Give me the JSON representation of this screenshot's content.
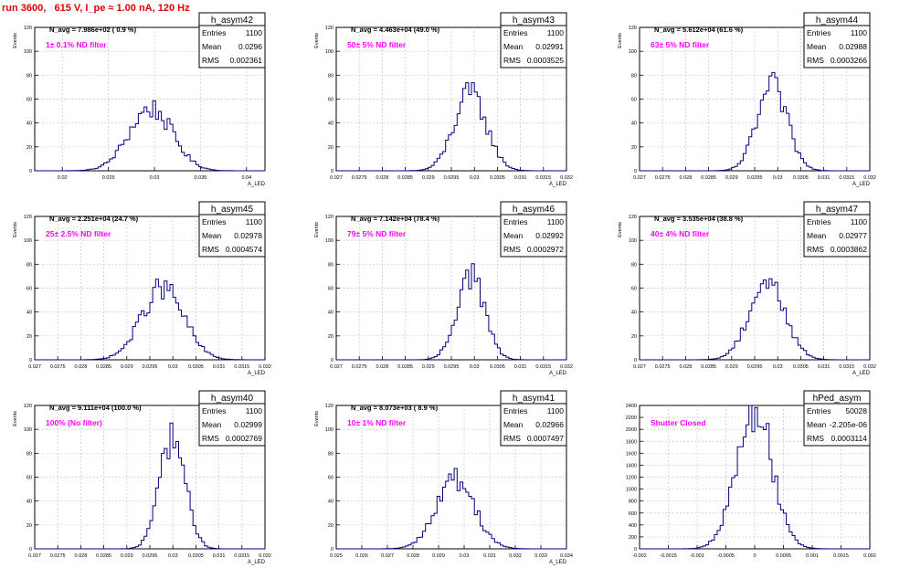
{
  "page_title": "run 3600,   615 V, I_pe ≈ 1.00 nA, 120 Hz",
  "colors": {
    "hist_line": "#000080",
    "annotation": "#ff00ff",
    "title": "#e00000",
    "grid": "#c8c8c8"
  },
  "chart_data": [
    {
      "type": "histogram",
      "name": "h_asym42",
      "stats": {
        "entries_label": "Entries",
        "entries": "1100",
        "mean_label": "Mean",
        "mean": "0.0296",
        "rms_label": "RMS",
        "rms": "0.002361"
      },
      "n_avg_text": "N_avg = 7.986e+02 ( 0.9 %)",
      "annotation": "1± 0.1% ND filter",
      "ylabel": "Events",
      "xlabel": "A_LED",
      "xlim": [
        0.017,
        0.042
      ],
      "ylim": [
        0,
        120
      ],
      "xticks": [
        0.02,
        0.025,
        0.03,
        0.035,
        0.04
      ],
      "xtick_labels": [
        "0.02",
        "0.025",
        "0.03",
        "0.035",
        "0.04"
      ],
      "yticks": [
        0,
        20,
        40,
        60,
        80,
        100,
        120
      ],
      "ytick_labels": [
        "0",
        "20",
        "40",
        "60",
        "80",
        "100",
        "120"
      ],
      "mean_value": 0.0296,
      "rms_value": 0.002361,
      "peak_counts": 52
    },
    {
      "type": "histogram",
      "name": "h_asym43",
      "stats": {
        "entries_label": "Entries",
        "entries": "1100",
        "mean_label": "Mean",
        "mean": "0.02991",
        "rms_label": "RMS",
        "rms": "0.0003525"
      },
      "n_avg_text": "N_avg = 4.463e+04 (49.0 %)",
      "annotation": "50± 5% ND filter",
      "ylabel": "Events",
      "xlabel": "A_LED",
      "xlim": [
        0.027,
        0.032
      ],
      "ylim": [
        0,
        120
      ],
      "xticks": [
        0.027,
        0.0275,
        0.028,
        0.0285,
        0.029,
        0.0295,
        0.03,
        0.0305,
        0.031,
        0.0315,
        0.032
      ],
      "xtick_labels": [
        "0.027",
        "0.0275",
        "0.028",
        "0.0285",
        "0.029",
        "0.0295",
        "0.03",
        "0.0305",
        "0.031",
        "0.0315",
        "0.032"
      ],
      "yticks": [
        0,
        20,
        40,
        60,
        80,
        100,
        120
      ],
      "ytick_labels": [
        "0",
        "20",
        "40",
        "60",
        "80",
        "100",
        "120"
      ],
      "mean_value": 0.02991,
      "rms_value": 0.0003525,
      "peak_counts": 64
    },
    {
      "type": "histogram",
      "name": "h_asym44",
      "stats": {
        "entries_label": "Entries",
        "entries": "1100",
        "mean_label": "Mean",
        "mean": "0.02988",
        "rms_label": "RMS",
        "rms": "0.0003266"
      },
      "n_avg_text": "N_avg = 5.612e+04 (61.6 %)",
      "annotation": "63± 5% ND filter",
      "ylabel": "Events",
      "xlabel": "A_LED",
      "xlim": [
        0.027,
        0.032
      ],
      "ylim": [
        0,
        120
      ],
      "xticks": [
        0.027,
        0.0275,
        0.028,
        0.0285,
        0.029,
        0.0295,
        0.03,
        0.0305,
        0.031,
        0.0315,
        0.032
      ],
      "xtick_labels": [
        "0.027",
        "0.0275",
        "0.028",
        "0.0285",
        "0.029",
        "0.0295",
        "0.03",
        "0.0305",
        "0.031",
        "0.0315",
        "0.032"
      ],
      "yticks": [
        0,
        20,
        40,
        60,
        80,
        100,
        120
      ],
      "ytick_labels": [
        "0",
        "20",
        "40",
        "60",
        "80",
        "100",
        "120"
      ],
      "mean_value": 0.02988,
      "rms_value": 0.0003266,
      "peak_counts": 70
    },
    {
      "type": "histogram",
      "name": "h_asym45",
      "stats": {
        "entries_label": "Entries",
        "entries": "1100",
        "mean_label": "Mean",
        "mean": "0.02978",
        "rms_label": "RMS",
        "rms": "0.0004574"
      },
      "n_avg_text": "N_avg = 2.251e+04 (24.7 %)",
      "annotation": "25± 2.5% ND filter",
      "ylabel": "Events",
      "xlabel": "A_LED",
      "xlim": [
        0.027,
        0.032
      ],
      "ylim": [
        0,
        120
      ],
      "xticks": [
        0.027,
        0.0275,
        0.028,
        0.0285,
        0.029,
        0.0295,
        0.03,
        0.0305,
        0.031,
        0.0315,
        0.032
      ],
      "xtick_labels": [
        "0.027",
        "0.0275",
        "0.028",
        "0.0285",
        "0.029",
        "0.0295",
        "0.03",
        "0.0305",
        "0.031",
        "0.0315",
        "0.032"
      ],
      "yticks": [
        0,
        20,
        40,
        60,
        80,
        100,
        120
      ],
      "ytick_labels": [
        "0",
        "20",
        "40",
        "60",
        "80",
        "100",
        "120"
      ],
      "mean_value": 0.02978,
      "rms_value": 0.0004574,
      "peak_counts": 60
    },
    {
      "type": "histogram",
      "name": "h_asym46",
      "stats": {
        "entries_label": "Entries",
        "entries": "1100",
        "mean_label": "Mean",
        "mean": "0.02992",
        "rms_label": "RMS",
        "rms": "0.0002972"
      },
      "n_avg_text": "N_avg = 7.142e+04 (78.4 %)",
      "annotation": "79± 5% ND filter",
      "ylabel": "Events",
      "xlabel": "A_LED",
      "xlim": [
        0.027,
        0.032
      ],
      "ylim": [
        0,
        120
      ],
      "xticks": [
        0.027,
        0.0275,
        0.028,
        0.0285,
        0.029,
        0.0295,
        0.03,
        0.0305,
        0.031,
        0.0315,
        0.032
      ],
      "xtick_labels": [
        "0.027",
        "0.0275",
        "0.028",
        "0.0285",
        "0.029",
        "0.0295",
        "0.03",
        "0.0305",
        "0.031",
        "0.0315",
        "0.032"
      ],
      "yticks": [
        0,
        20,
        40,
        60,
        80,
        100,
        120
      ],
      "ytick_labels": [
        "0",
        "20",
        "40",
        "60",
        "80",
        "100",
        "120"
      ],
      "mean_value": 0.02992,
      "rms_value": 0.0002972,
      "peak_counts": 72
    },
    {
      "type": "histogram",
      "name": "h_asym47",
      "stats": {
        "entries_label": "Entries",
        "entries": "1100",
        "mean_label": "Mean",
        "mean": "0.02977",
        "rms_label": "RMS",
        "rms": "0.0003862"
      },
      "n_avg_text": "N_avg = 3.535e+04 (38.8 %)",
      "annotation": "40± 4% ND filter",
      "ylabel": "Events",
      "xlabel": "A_LED",
      "xlim": [
        0.027,
        0.032
      ],
      "ylim": [
        0,
        120
      ],
      "xticks": [
        0.027,
        0.0275,
        0.028,
        0.0285,
        0.029,
        0.0295,
        0.03,
        0.0305,
        0.031,
        0.0315,
        0.032
      ],
      "xtick_labels": [
        "0.027",
        "0.0275",
        "0.028",
        "0.0285",
        "0.029",
        "0.0295",
        "0.03",
        "0.0305",
        "0.031",
        "0.0315",
        "0.032"
      ],
      "yticks": [
        0,
        20,
        40,
        60,
        80,
        100,
        120
      ],
      "ytick_labels": [
        "0",
        "20",
        "40",
        "60",
        "80",
        "100",
        "120"
      ],
      "mean_value": 0.02977,
      "rms_value": 0.0003862,
      "peak_counts": 66
    },
    {
      "type": "histogram",
      "name": "h_asym40",
      "stats": {
        "entries_label": "Entries",
        "entries": "1100",
        "mean_label": "Mean",
        "mean": "0.02999",
        "rms_label": "RMS",
        "rms": "0.0002769"
      },
      "n_avg_text": "N_avg = 9.111e+04 (100.0 %)",
      "annotation": "100% (No filter)",
      "ylabel": "Events",
      "xlabel": "A_LED",
      "xlim": [
        0.027,
        0.032
      ],
      "ylim": [
        0,
        120
      ],
      "xticks": [
        0.027,
        0.0275,
        0.028,
        0.0285,
        0.029,
        0.0295,
        0.03,
        0.0305,
        0.031,
        0.0315,
        0.032
      ],
      "xtick_labels": [
        "0.027",
        "0.0275",
        "0.028",
        "0.0285",
        "0.029",
        "0.0295",
        "0.03",
        "0.0305",
        "0.031",
        "0.0315",
        "0.032"
      ],
      "yticks": [
        0,
        20,
        40,
        60,
        80,
        100,
        120
      ],
      "ytick_labels": [
        "0",
        "20",
        "40",
        "60",
        "80",
        "100",
        "120"
      ],
      "mean_value": 0.02999,
      "rms_value": 0.0002769,
      "peak_counts": 95
    },
    {
      "type": "histogram",
      "name": "h_asym41",
      "stats": {
        "entries_label": "Entries",
        "entries": "1100",
        "mean_label": "Mean",
        "mean": "0.02966",
        "rms_label": "RMS",
        "rms": "0.0007497"
      },
      "n_avg_text": "N_avg = 8.073e+03 ( 8.9 %)",
      "annotation": "10± 1% ND filter",
      "ylabel": "Events",
      "xlabel": "A_LED",
      "xlim": [
        0.025,
        0.034
      ],
      "ylim": [
        0,
        120
      ],
      "xticks": [
        0.025,
        0.026,
        0.027,
        0.028,
        0.029,
        0.03,
        0.031,
        0.032,
        0.033,
        0.034
      ],
      "xtick_labels": [
        "0.025",
        "0.026",
        "0.027",
        "0.028",
        "0.029",
        "0.03",
        "0.031",
        "0.032",
        "0.033",
        "0.034"
      ],
      "yticks": [
        0,
        20,
        40,
        60,
        80,
        100,
        120
      ],
      "ytick_labels": [
        "0",
        "20",
        "40",
        "60",
        "80",
        "100",
        "120"
      ],
      "mean_value": 0.02966,
      "rms_value": 0.0007497,
      "peak_counts": 58
    },
    {
      "type": "histogram",
      "name": "hPed_asym",
      "stats": {
        "entries_label": "Entries",
        "entries": "50028",
        "mean_label": "Mean",
        "mean": "-2.205e-06",
        "rms_label": "RMS",
        "rms": "0.0003114"
      },
      "n_avg_text": "",
      "annotation": "Shutter Closed",
      "ylabel": "",
      "xlabel": "",
      "xlim": [
        -0.002,
        0.002
      ],
      "ylim": [
        0,
        2400
      ],
      "xticks": [
        -0.002,
        -0.0015,
        -0.001,
        -0.0005,
        0,
        0.0005,
        0.001,
        0.0015,
        0.002
      ],
      "xtick_labels": [
        "-0.002",
        "-0.0015",
        "-0.001",
        "-0.0005",
        "0",
        "0.0005",
        "0.001",
        "0.0015",
        "0.002"
      ],
      "yticks": [
        0,
        200,
        400,
        600,
        800,
        1000,
        1200,
        1400,
        1600,
        1800,
        2000,
        2200,
        2400
      ],
      "ytick_labels": [
        "0",
        "200",
        "400",
        "600",
        "800",
        "1000",
        "1200",
        "1400",
        "1600",
        "1800",
        "2000",
        "2200",
        "2400"
      ],
      "mean_value": -2.2e-06,
      "rms_value": 0.0003114,
      "peak_counts": 2330
    }
  ]
}
